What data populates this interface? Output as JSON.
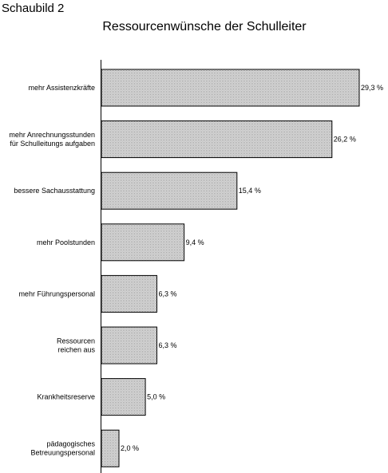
{
  "header": {
    "caption": "Schaubild 2"
  },
  "chart_data": {
    "type": "bar",
    "orientation": "horizontal",
    "title": "Ressourcenwünsche der Schulleiter",
    "categories": [
      [
        "mehr Assistenzkräfte"
      ],
      [
        "mehr Anrechnungsstunden",
        "für Schulleitungs aufgaben"
      ],
      [
        "bessere Sachausstattung"
      ],
      [
        "mehr Poolstunden"
      ],
      [
        "mehr Führungspersonal"
      ],
      [
        "Ressourcen",
        "reichen aus"
      ],
      [
        "Krankheitsreserve"
      ],
      [
        "pädagogisches",
        "Betreuungspersonal"
      ]
    ],
    "values": [
      29.3,
      26.2,
      15.4,
      9.4,
      6.3,
      6.3,
      5.0,
      2.0
    ],
    "value_labels": [
      "29,3 %",
      "26,2 %",
      "15,4 %",
      "9,4 %",
      "6,3 %",
      "6,3 %",
      "5,0 %",
      "2,0 %"
    ],
    "xlim": [
      0,
      29.3
    ],
    "grid": false,
    "legend": "none",
    "bar_fill": "dotted gray",
    "colors": {
      "bar_edge": "#000000",
      "bar_fill": "#e8e8e8",
      "dot": "#9a9a9a"
    }
  }
}
